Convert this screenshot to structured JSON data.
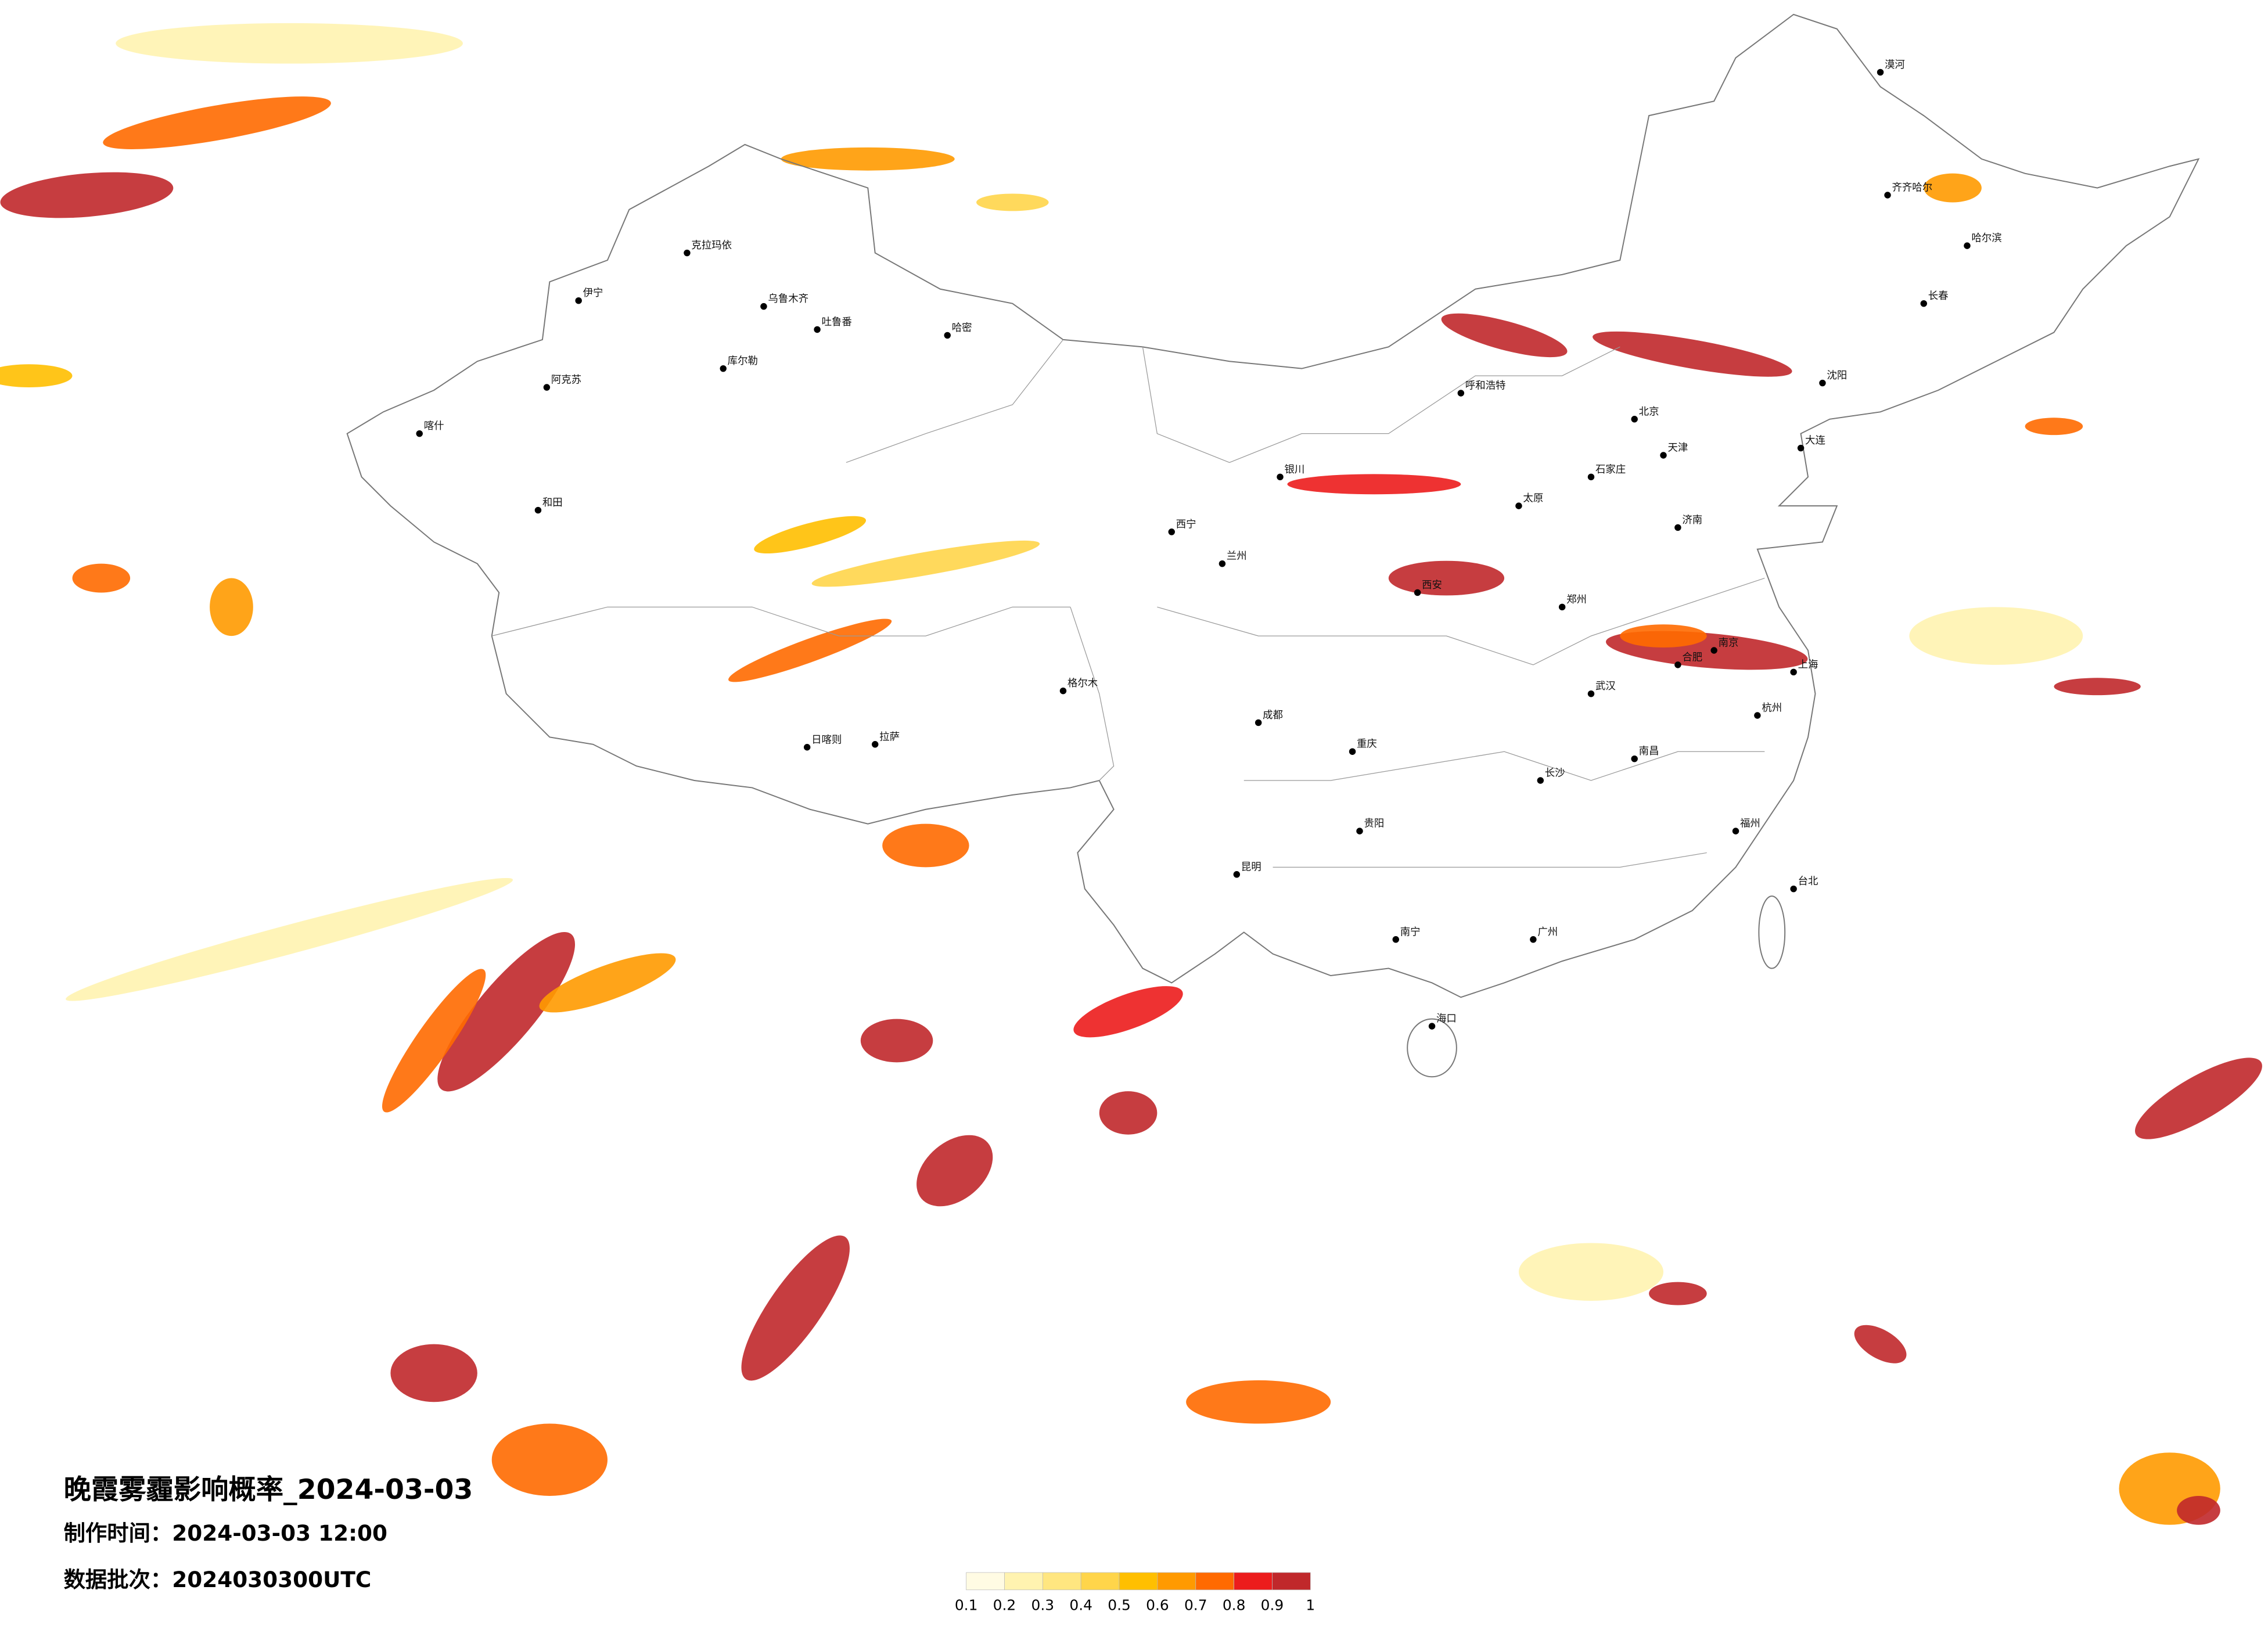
{
  "header": {
    "title": "晚霞雾霾影响概率_2024-03-03",
    "made_time": "制作时间：2024-03-03 12:00",
    "batch": "数据批次：2024030300UTC"
  },
  "legend": {
    "colors": [
      "#fffbe3",
      "#fff3b0",
      "#ffe680",
      "#ffd54a",
      "#ffbf00",
      "#ff9a00",
      "#ff6a00",
      "#ec1c1c",
      "#c0282b"
    ],
    "ticks": [
      0.1,
      0.2,
      0.3,
      0.4,
      0.5,
      0.6,
      0.7,
      0.8,
      0.9,
      1
    ]
  },
  "cities": [
    "乌鲁木齐",
    "克拉玛依",
    "伊宁",
    "阿克苏",
    "喀什",
    "和田",
    "哈密",
    "吐鲁番",
    "库尔勒",
    "拉萨",
    "日喀则",
    "格尔木",
    "西宁",
    "兰州",
    "银川",
    "呼和浩特",
    "北京",
    "天津",
    "石家庄",
    "太原",
    "济南",
    "郑州",
    "西安",
    "成都",
    "重庆",
    "武汉",
    "合肥",
    "南京",
    "上海",
    "杭州",
    "南昌",
    "长沙",
    "贵阳",
    "昆明",
    "南宁",
    "广州",
    "福州",
    "台北",
    "海口",
    "沈阳",
    "长春",
    "哈尔滨",
    "齐齐哈尔",
    "大连",
    "漠河"
  ]
}
